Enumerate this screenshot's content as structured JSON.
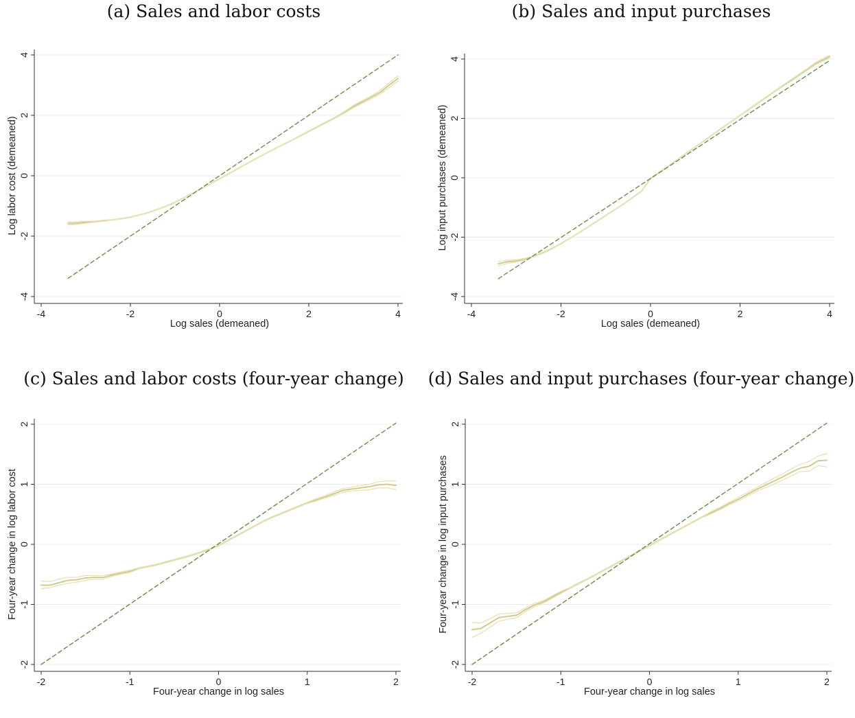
{
  "chart_data": [
    {
      "type": "line",
      "title": "(a) Sales and labor costs",
      "xlabel": "Log sales (demeaned)",
      "ylabel": "Log labor cost (demeaned)",
      "xlim": [
        -4,
        4
      ],
      "ylim": [
        -4,
        4
      ],
      "xticks": [
        -4,
        -2,
        0,
        2,
        4
      ],
      "yticks": [
        -4,
        -2,
        0,
        2,
        4
      ],
      "grid": true,
      "series": [
        {
          "role": "fit",
          "color": "#d2cc8c",
          "x": [
            -3.4,
            -3.2,
            -3.0,
            -2.8,
            -2.6,
            -2.4,
            -2.2,
            -2.0,
            -1.8,
            -1.6,
            -1.4,
            -1.2,
            -1.0,
            -0.8,
            -0.6,
            -0.4,
            -0.2,
            0.0,
            0.2,
            0.5,
            0.8,
            1.0,
            1.3,
            1.6,
            2.0,
            2.3,
            2.6,
            2.8,
            3.0,
            3.3,
            3.6,
            3.8,
            4.0
          ],
          "y": [
            -1.58,
            -1.57,
            -1.54,
            -1.52,
            -1.49,
            -1.46,
            -1.42,
            -1.37,
            -1.3,
            -1.22,
            -1.12,
            -1.01,
            -0.88,
            -0.73,
            -0.58,
            -0.42,
            -0.26,
            -0.1,
            0.06,
            0.31,
            0.55,
            0.71,
            0.94,
            1.16,
            1.47,
            1.7,
            1.93,
            2.1,
            2.29,
            2.52,
            2.76,
            3.0,
            3.22
          ]
        },
        {
          "role": "ci-upper",
          "color": "#e6e2b8",
          "x": [
            -3.4,
            -3.2,
            -3.0,
            -2.8,
            -2.6,
            -2.4,
            -2.2,
            -2.0,
            -1.8,
            -1.6,
            -1.4,
            -1.2,
            -1.0,
            -0.8,
            -0.6,
            -0.4,
            -0.2,
            0.0,
            0.2,
            0.5,
            0.8,
            1.0,
            1.3,
            1.6,
            2.0,
            2.3,
            2.6,
            2.8,
            3.0,
            3.3,
            3.6,
            3.8,
            4.0
          ],
          "y": [
            -1.53,
            -1.53,
            -1.51,
            -1.5,
            -1.47,
            -1.45,
            -1.41,
            -1.36,
            -1.29,
            -1.21,
            -1.11,
            -1.0,
            -0.87,
            -0.72,
            -0.57,
            -0.41,
            -0.25,
            -0.09,
            0.07,
            0.32,
            0.56,
            0.72,
            0.95,
            1.17,
            1.49,
            1.72,
            1.95,
            2.13,
            2.33,
            2.57,
            2.82,
            3.08,
            3.3
          ]
        },
        {
          "role": "ci-lower",
          "color": "#e6e2b8",
          "x": [
            -3.4,
            -3.2,
            -3.0,
            -2.8,
            -2.6,
            -2.4,
            -2.2,
            -2.0,
            -1.8,
            -1.6,
            -1.4,
            -1.2,
            -1.0,
            -0.8,
            -0.6,
            -0.4,
            -0.2,
            0.0,
            0.2,
            0.5,
            0.8,
            1.0,
            1.3,
            1.6,
            2.0,
            2.3,
            2.6,
            2.8,
            3.0,
            3.3,
            3.6,
            3.8,
            4.0
          ],
          "y": [
            -1.63,
            -1.61,
            -1.57,
            -1.54,
            -1.51,
            -1.47,
            -1.43,
            -1.38,
            -1.31,
            -1.23,
            -1.13,
            -1.02,
            -0.89,
            -0.74,
            -0.59,
            -0.43,
            -0.27,
            -0.11,
            0.05,
            0.3,
            0.54,
            0.7,
            0.93,
            1.15,
            1.45,
            1.68,
            1.91,
            2.07,
            2.25,
            2.47,
            2.7,
            2.92,
            3.14
          ]
        },
        {
          "role": "45-degree",
          "color": "#6b8f4a",
          "dashed": true,
          "x": [
            -3.4,
            4.0
          ],
          "y": [
            -3.4,
            4.0
          ]
        }
      ]
    },
    {
      "type": "line",
      "title": "(b) Sales and input purchases",
      "xlabel": "Log sales (demeaned)",
      "ylabel": "Log input purchases (demeaned)",
      "xlim": [
        -4,
        4
      ],
      "ylim": [
        -4,
        4
      ],
      "xticks": [
        -4,
        -2,
        0,
        2,
        4
      ],
      "yticks": [
        -4,
        -2,
        0,
        2,
        4
      ],
      "grid": true,
      "series": [
        {
          "role": "fit",
          "color": "#d2cc8c",
          "x": [
            -3.4,
            -3.2,
            -3.0,
            -2.8,
            -2.6,
            -2.4,
            -2.2,
            -2.0,
            -1.7,
            -1.4,
            -1.0,
            -0.6,
            -0.2,
            0.0,
            0.4,
            0.8,
            1.2,
            1.6,
            2.0,
            2.4,
            2.8,
            3.2,
            3.5,
            3.7,
            4.0
          ],
          "y": [
            -2.9,
            -2.83,
            -2.8,
            -2.74,
            -2.64,
            -2.52,
            -2.38,
            -2.22,
            -1.95,
            -1.66,
            -1.27,
            -0.88,
            -0.45,
            -0.02,
            0.4,
            0.82,
            1.25,
            1.68,
            2.1,
            2.52,
            2.94,
            3.34,
            3.65,
            3.86,
            4.08
          ]
        },
        {
          "role": "ci-upper",
          "color": "#e6e2b8",
          "x": [
            -3.4,
            -3.2,
            -3.0,
            -2.8,
            -2.6,
            -2.4,
            -2.2,
            -2.0,
            -1.7,
            -1.4,
            -1.0,
            -0.6,
            -0.2,
            0.0,
            0.4,
            0.8,
            1.2,
            1.6,
            2.0,
            2.4,
            2.8,
            3.2,
            3.5,
            3.7,
            4.0
          ],
          "y": [
            -2.83,
            -2.78,
            -2.76,
            -2.71,
            -2.62,
            -2.5,
            -2.36,
            -2.21,
            -1.94,
            -1.65,
            -1.26,
            -0.87,
            -0.44,
            -0.01,
            0.41,
            0.83,
            1.26,
            1.69,
            2.11,
            2.54,
            2.96,
            3.37,
            3.68,
            3.9,
            4.13
          ]
        },
        {
          "role": "ci-lower",
          "color": "#e6e2b8",
          "x": [
            -3.4,
            -3.2,
            -3.0,
            -2.8,
            -2.6,
            -2.4,
            -2.2,
            -2.0,
            -1.7,
            -1.4,
            -1.0,
            -0.6,
            -0.2,
            0.0,
            0.4,
            0.8,
            1.2,
            1.6,
            2.0,
            2.4,
            2.8,
            3.2,
            3.5,
            3.7,
            4.0
          ],
          "y": [
            -2.97,
            -2.88,
            -2.84,
            -2.77,
            -2.66,
            -2.54,
            -2.4,
            -2.23,
            -1.96,
            -1.67,
            -1.28,
            -0.89,
            -0.46,
            -0.03,
            0.39,
            0.81,
            1.24,
            1.67,
            2.09,
            2.5,
            2.92,
            3.31,
            3.62,
            3.82,
            4.03
          ]
        },
        {
          "role": "45-degree",
          "color": "#6b8f4a",
          "dashed": true,
          "x": [
            -3.4,
            4.0
          ],
          "y": [
            -3.4,
            3.95
          ]
        }
      ]
    },
    {
      "type": "line",
      "title": "(c) Sales and labor costs (four-year change)",
      "xlabel": "Four-year change in log sales",
      "ylabel": "Four-year change in log labor cost",
      "xlim": [
        -2,
        2
      ],
      "ylim": [
        -2,
        2
      ],
      "xticks": [
        -2,
        -1,
        0,
        1,
        2
      ],
      "yticks": [
        -2,
        -1,
        0,
        1,
        2
      ],
      "grid": true,
      "series": [
        {
          "role": "fit",
          "color": "#d2cc8c",
          "x": [
            -2.0,
            -1.9,
            -1.8,
            -1.7,
            -1.6,
            -1.5,
            -1.4,
            -1.3,
            -1.2,
            -1.1,
            -1.0,
            -0.9,
            -0.8,
            -0.7,
            -0.6,
            -0.5,
            -0.4,
            -0.3,
            -0.2,
            -0.1,
            0.0,
            0.1,
            0.2,
            0.3,
            0.4,
            0.5,
            0.6,
            0.7,
            0.8,
            0.9,
            1.0,
            1.1,
            1.2,
            1.3,
            1.4,
            1.5,
            1.6,
            1.7,
            1.8,
            1.9,
            2.0
          ],
          "y": [
            -0.68,
            -0.68,
            -0.64,
            -0.6,
            -0.59,
            -0.56,
            -0.55,
            -0.55,
            -0.51,
            -0.48,
            -0.45,
            -0.4,
            -0.37,
            -0.34,
            -0.3,
            -0.26,
            -0.22,
            -0.18,
            -0.13,
            -0.08,
            -0.02,
            0.06,
            0.14,
            0.22,
            0.3,
            0.38,
            0.45,
            0.51,
            0.57,
            0.63,
            0.69,
            0.74,
            0.79,
            0.84,
            0.9,
            0.92,
            0.94,
            0.96,
            0.99,
            1.0,
            0.98
          ]
        },
        {
          "role": "ci-upper",
          "color": "#e6e2b8",
          "x": [
            -2.0,
            -1.9,
            -1.8,
            -1.7,
            -1.6,
            -1.5,
            -1.4,
            -1.3,
            -1.2,
            -1.1,
            -1.0,
            -0.9,
            -0.8,
            -0.7,
            -0.6,
            -0.5,
            -0.4,
            -0.3,
            -0.2,
            -0.1,
            0.0,
            0.1,
            0.2,
            0.3,
            0.4,
            0.5,
            0.6,
            0.7,
            0.8,
            0.9,
            1.0,
            1.1,
            1.2,
            1.3,
            1.4,
            1.5,
            1.6,
            1.7,
            1.8,
            1.9,
            2.0
          ],
          "y": [
            -0.61,
            -0.62,
            -0.58,
            -0.55,
            -0.55,
            -0.52,
            -0.52,
            -0.52,
            -0.49,
            -0.46,
            -0.43,
            -0.39,
            -0.36,
            -0.33,
            -0.29,
            -0.25,
            -0.21,
            -0.17,
            -0.12,
            -0.07,
            -0.01,
            0.07,
            0.15,
            0.23,
            0.31,
            0.39,
            0.46,
            0.52,
            0.58,
            0.64,
            0.7,
            0.76,
            0.81,
            0.87,
            0.93,
            0.95,
            0.98,
            1.0,
            1.04,
            1.06,
            1.05
          ]
        },
        {
          "role": "ci-lower",
          "color": "#e6e2b8",
          "x": [
            -2.0,
            -1.9,
            -1.8,
            -1.7,
            -1.6,
            -1.5,
            -1.4,
            -1.3,
            -1.2,
            -1.1,
            -1.0,
            -0.9,
            -0.8,
            -0.7,
            -0.6,
            -0.5,
            -0.4,
            -0.3,
            -0.2,
            -0.1,
            0.0,
            0.1,
            0.2,
            0.3,
            0.4,
            0.5,
            0.6,
            0.7,
            0.8,
            0.9,
            1.0,
            1.1,
            1.2,
            1.3,
            1.4,
            1.5,
            1.6,
            1.7,
            1.8,
            1.9,
            2.0
          ],
          "y": [
            -0.74,
            -0.72,
            -0.68,
            -0.65,
            -0.63,
            -0.6,
            -0.58,
            -0.58,
            -0.53,
            -0.5,
            -0.47,
            -0.41,
            -0.38,
            -0.35,
            -0.31,
            -0.27,
            -0.23,
            -0.19,
            -0.14,
            -0.09,
            -0.03,
            0.05,
            0.13,
            0.21,
            0.29,
            0.37,
            0.44,
            0.5,
            0.56,
            0.62,
            0.68,
            0.72,
            0.77,
            0.81,
            0.87,
            0.89,
            0.9,
            0.91,
            0.94,
            0.94,
            0.91
          ]
        },
        {
          "role": "45-degree",
          "color": "#6b8f4a",
          "dashed": true,
          "x": [
            -2.0,
            2.0
          ],
          "y": [
            -2.0,
            2.02
          ]
        }
      ]
    },
    {
      "type": "line",
      "title": "(d) Sales and input purchases (four-year change)",
      "xlabel": "Four-year change in log sales",
      "ylabel": "Four-year change in log input purchases",
      "xlim": [
        -2,
        2
      ],
      "ylim": [
        -2,
        2
      ],
      "xticks": [
        -2,
        -1,
        0,
        1,
        2
      ],
      "yticks": [
        -2,
        -1,
        0,
        1,
        2
      ],
      "grid": true,
      "series": [
        {
          "role": "fit",
          "color": "#d2cc8c",
          "x": [
            -2.0,
            -1.9,
            -1.8,
            -1.7,
            -1.6,
            -1.5,
            -1.4,
            -1.3,
            -1.2,
            -1.1,
            -1.0,
            -0.9,
            -0.8,
            -0.7,
            -0.6,
            -0.5,
            -0.4,
            -0.3,
            -0.2,
            -0.1,
            0.0,
            0.1,
            0.2,
            0.3,
            0.4,
            0.5,
            0.6,
            0.7,
            0.8,
            0.9,
            1.0,
            1.1,
            1.2,
            1.3,
            1.4,
            1.5,
            1.6,
            1.7,
            1.8,
            1.9,
            2.0
          ],
          "y": [
            -1.42,
            -1.4,
            -1.31,
            -1.22,
            -1.2,
            -1.18,
            -1.09,
            -1.01,
            -0.96,
            -0.88,
            -0.8,
            -0.73,
            -0.65,
            -0.58,
            -0.5,
            -0.42,
            -0.34,
            -0.26,
            -0.18,
            -0.1,
            -0.02,
            0.06,
            0.14,
            0.22,
            0.3,
            0.38,
            0.46,
            0.53,
            0.6,
            0.68,
            0.75,
            0.83,
            0.91,
            0.98,
            1.05,
            1.12,
            1.2,
            1.27,
            1.3,
            1.39,
            1.4
          ]
        },
        {
          "role": "ci-upper",
          "color": "#e6e2b8",
          "x": [
            -2.0,
            -1.9,
            -1.8,
            -1.7,
            -1.6,
            -1.5,
            -1.4,
            -1.3,
            -1.2,
            -1.1,
            -1.0,
            -0.9,
            -0.8,
            -0.7,
            -0.6,
            -0.5,
            -0.4,
            -0.3,
            -0.2,
            -0.1,
            0.0,
            0.1,
            0.2,
            0.3,
            0.4,
            0.5,
            0.6,
            0.7,
            0.8,
            0.9,
            1.0,
            1.1,
            1.2,
            1.3,
            1.4,
            1.5,
            1.6,
            1.7,
            1.8,
            1.9,
            2.0
          ],
          "y": [
            -1.3,
            -1.31,
            -1.24,
            -1.16,
            -1.15,
            -1.14,
            -1.06,
            -0.98,
            -0.94,
            -0.86,
            -0.78,
            -0.72,
            -0.64,
            -0.57,
            -0.49,
            -0.41,
            -0.33,
            -0.25,
            -0.17,
            -0.09,
            -0.01,
            0.07,
            0.15,
            0.23,
            0.31,
            0.39,
            0.47,
            0.55,
            0.62,
            0.7,
            0.78,
            0.86,
            0.94,
            1.02,
            1.1,
            1.17,
            1.26,
            1.33,
            1.38,
            1.47,
            1.51
          ]
        },
        {
          "role": "ci-lower",
          "color": "#e6e2b8",
          "x": [
            -2.0,
            -1.9,
            -1.8,
            -1.7,
            -1.6,
            -1.5,
            -1.4,
            -1.3,
            -1.2,
            -1.1,
            -1.0,
            -0.9,
            -0.8,
            -0.7,
            -0.6,
            -0.5,
            -0.4,
            -0.3,
            -0.2,
            -0.1,
            0.0,
            0.1,
            0.2,
            0.3,
            0.4,
            0.5,
            0.6,
            0.7,
            0.8,
            0.9,
            1.0,
            1.1,
            1.2,
            1.3,
            1.4,
            1.5,
            1.6,
            1.7,
            1.8,
            1.9,
            2.0
          ],
          "y": [
            -1.55,
            -1.48,
            -1.38,
            -1.28,
            -1.25,
            -1.22,
            -1.12,
            -1.04,
            -0.98,
            -0.9,
            -0.82,
            -0.74,
            -0.66,
            -0.59,
            -0.51,
            -0.43,
            -0.35,
            -0.27,
            -0.19,
            -0.11,
            -0.03,
            0.05,
            0.13,
            0.21,
            0.29,
            0.37,
            0.45,
            0.51,
            0.58,
            0.66,
            0.72,
            0.8,
            0.88,
            0.94,
            1.0,
            1.07,
            1.14,
            1.21,
            1.22,
            1.31,
            1.29
          ]
        },
        {
          "role": "45-degree",
          "color": "#6b8f4a",
          "dashed": true,
          "x": [
            -2.0,
            2.0
          ],
          "y": [
            -2.0,
            2.02
          ]
        }
      ]
    }
  ]
}
